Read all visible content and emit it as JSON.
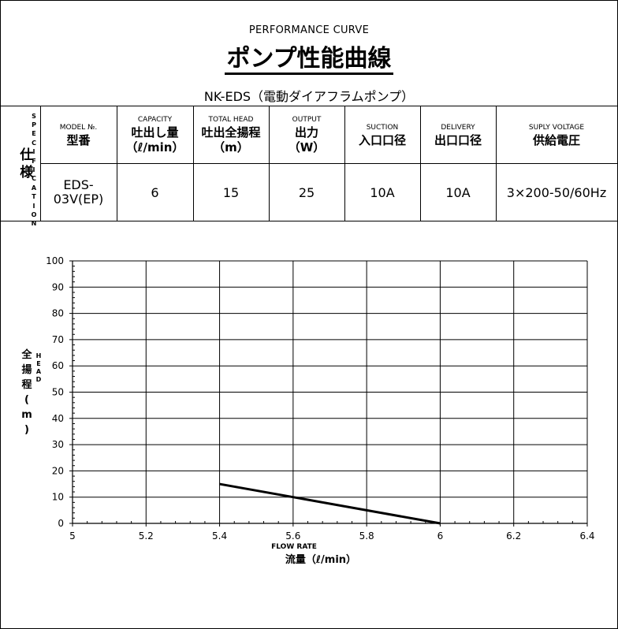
{
  "header": {
    "subtitle": "PERFORMANCE CURVE",
    "title": "ポンプ性能曲線",
    "model_line": "NK-EDS（電動ダイアフラムポンプ）"
  },
  "spec": {
    "side_jp": "仕様",
    "side_en": "SPECIFICATION",
    "columns": [
      {
        "en": "MODEL №.",
        "jp": "型番"
      },
      {
        "en": "CAPACITY",
        "jp": "吐出し量",
        "unit": "（ℓ/min）"
      },
      {
        "en": "TOTAL HEAD",
        "jp": "吐出全揚程",
        "unit": "（m）"
      },
      {
        "en": "OUTPUT",
        "jp": "出力",
        "unit": "（W）"
      },
      {
        "en": "SUCTION",
        "jp": "入口口径"
      },
      {
        "en": "DELIVERY",
        "jp": "出口口径"
      },
      {
        "en": "SUPLY VOLTAGE",
        "jp": "供給電圧"
      }
    ],
    "values": {
      "model_line1": "EDS-",
      "model_line2": "03V(EP)",
      "capacity": "6",
      "head": "15",
      "output": "25",
      "suction": "10A",
      "delivery": "10A",
      "voltage": "3×200-50/60Hz"
    }
  },
  "chart_data": {
    "type": "line",
    "x_values": [
      5.4,
      6.0
    ],
    "series": [
      {
        "values": [
          15,
          0
        ],
        "color": "#000000"
      }
    ],
    "xlim": [
      5,
      6.4
    ],
    "ylim": [
      0,
      100
    ],
    "x_ticks": [
      "5",
      "5.2",
      "5.4",
      "5.6",
      "5.8",
      "6",
      "6.2",
      "6.4"
    ],
    "y_ticks": [
      "0",
      "10",
      "20",
      "30",
      "40",
      "50",
      "60",
      "70",
      "80",
      "90",
      "100"
    ],
    "xlabel_en": "FLOW RATE",
    "xlabel_jp": "流量（ℓ/min）",
    "ylabel_jp": "全揚程（m）",
    "ylabel_en": "HEAD",
    "grid": true
  }
}
